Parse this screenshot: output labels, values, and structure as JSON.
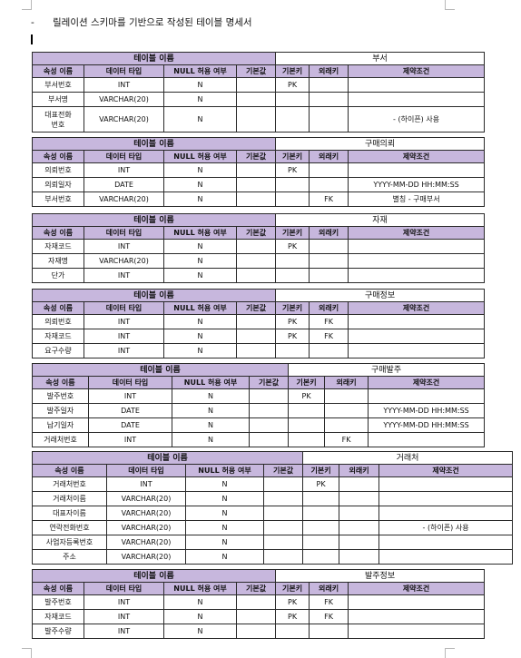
{
  "heading": "릴레이션 스키마를 기반으로 작성된 테이블 명세서",
  "heading_marker": "-",
  "table_label": "테이블 이름",
  "columns": [
    "속성 이름",
    "데이터 타입",
    "NULL 허용 여부",
    "기본값",
    "기본키",
    "외래키",
    "제약조건"
  ],
  "tables": [
    {
      "name": "부서",
      "rows": [
        [
          "부서번호",
          "INT",
          "N",
          "",
          "PK",
          "",
          ""
        ],
        [
          "부서명",
          "VARCHAR(20)",
          "N",
          "",
          "",
          "",
          ""
        ],
        [
          "대표전화\n번호",
          "VARCHAR(20)",
          "N",
          "",
          "",
          "",
          "- (하이픈) 사용"
        ]
      ]
    },
    {
      "name": "구매의뢰",
      "rows": [
        [
          "의뢰번호",
          "INT",
          "N",
          "",
          "PK",
          "",
          ""
        ],
        [
          "의뢰일자",
          "DATE",
          "N",
          "",
          "",
          "",
          "YYYY-MM-DD HH:MM:SS"
        ],
        [
          "부서번호",
          "VARCHAR(20)",
          "N",
          "",
          "",
          "FK",
          "별칭 - 구매부서"
        ]
      ]
    },
    {
      "name": "자재",
      "rows": [
        [
          "자재코드",
          "INT",
          "N",
          "",
          "PK",
          "",
          ""
        ],
        [
          "자재명",
          "VARCHAR(20)",
          "N",
          "",
          "",
          "",
          ""
        ],
        [
          "단가",
          "INT",
          "N",
          "",
          "",
          "",
          ""
        ]
      ]
    },
    {
      "name": "구매정보",
      "rows": [
        [
          "의뢰번호",
          "INT",
          "N",
          "",
          "PK",
          "FK",
          ""
        ],
        [
          "자재코드",
          "INT",
          "N",
          "",
          "PK",
          "FK",
          ""
        ],
        [
          "요구수량",
          "INT",
          "N",
          "",
          "",
          "",
          ""
        ]
      ]
    },
    {
      "name": "구매발주",
      "rows": [
        [
          "발주번호",
          "INT",
          "N",
          "",
          "PK",
          "",
          ""
        ],
        [
          "발주일자",
          "DATE",
          "N",
          "",
          "",
          "",
          "YYYY-MM-DD HH:MM:SS"
        ],
        [
          "납기일자",
          "DATE",
          "N",
          "",
          "",
          "",
          "YYYY-MM-DD HH:MM:SS"
        ],
        [
          "거래처번호",
          "INT",
          "N",
          "",
          "",
          "FK",
          ""
        ]
      ]
    },
    {
      "name": "거래처",
      "rows": [
        [
          "거래처번호",
          "INT",
          "N",
          "",
          "PK",
          "",
          ""
        ],
        [
          "거래처이름",
          "VARCHAR(20)",
          "N",
          "",
          "",
          "",
          ""
        ],
        [
          "대표자이름",
          "VARCHAR(20)",
          "N",
          "",
          "",
          "",
          ""
        ],
        [
          "연락전화번호",
          "VARCHAR(20)",
          "N",
          "",
          "",
          "",
          "- (하이픈) 사용"
        ],
        [
          "사업자등록번호",
          "VARCHAR(20)",
          "N",
          "",
          "",
          "",
          ""
        ],
        [
          "주소",
          "VARCHAR(20)",
          "N",
          "",
          "",
          "",
          ""
        ]
      ]
    },
    {
      "name": "발주정보",
      "rows": [
        [
          "발주번호",
          "INT",
          "N",
          "",
          "PK",
          "FK",
          ""
        ],
        [
          "자재코드",
          "INT",
          "N",
          "",
          "PK",
          "FK",
          ""
        ],
        [
          "발주수량",
          "INT",
          "N",
          "",
          "",
          "",
          ""
        ]
      ]
    }
  ]
}
